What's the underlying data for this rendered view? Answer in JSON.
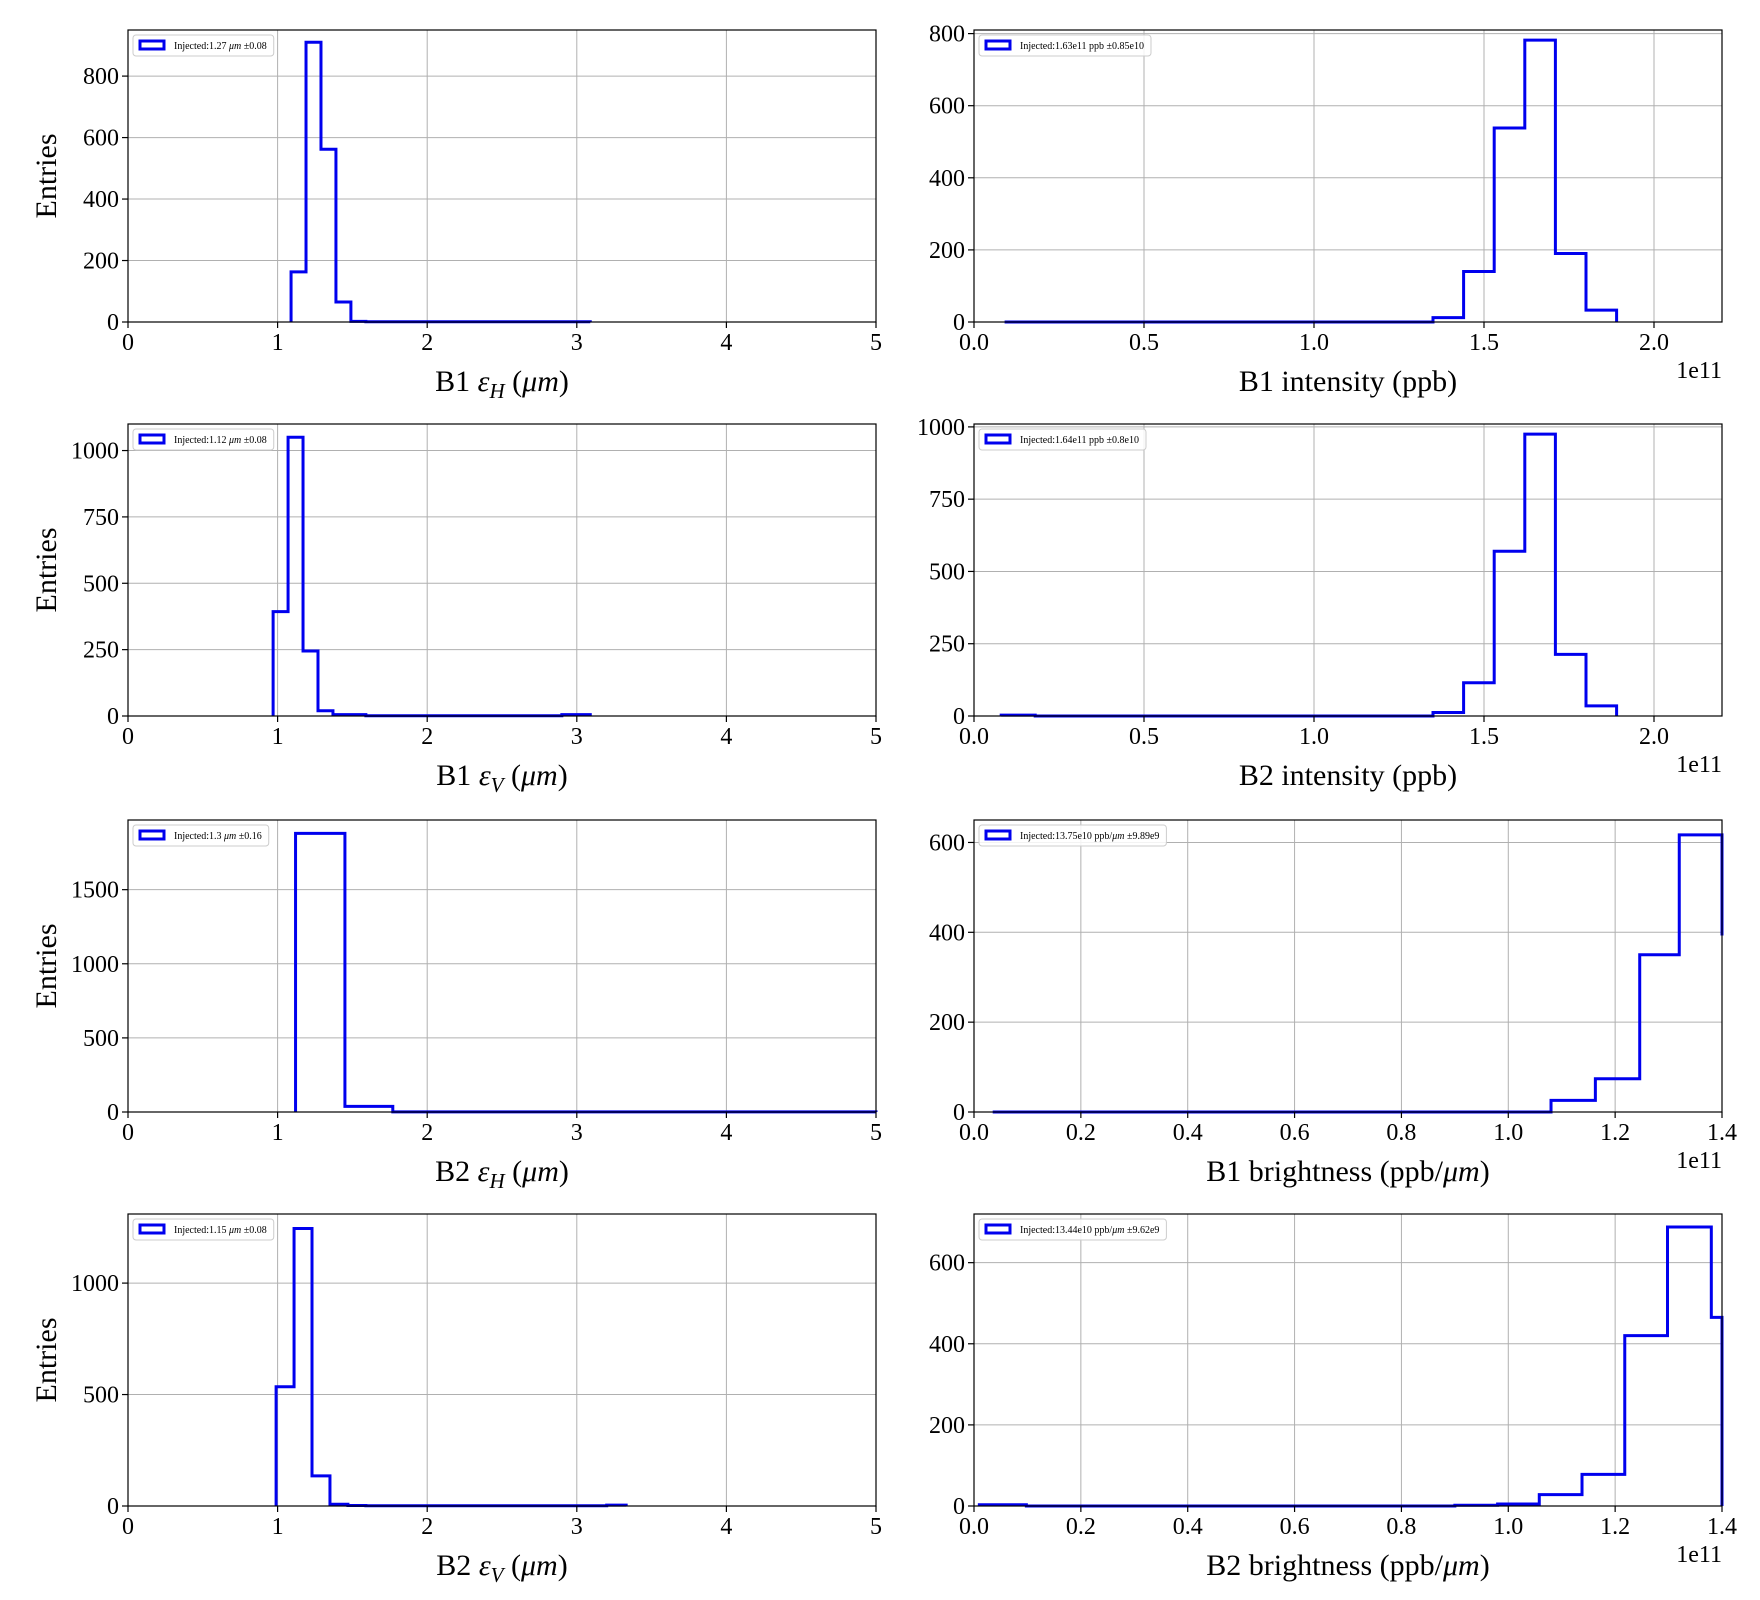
{
  "chart_data": [
    {
      "type": "step-histogram",
      "xlabel": "B1 ε_H (μm)",
      "xlabel_parts": [
        "B1 ",
        "ε",
        "H",
        " (",
        "μm",
        ")"
      ],
      "ylabel": "Entries",
      "xlim": [
        0,
        5
      ],
      "ylim": [
        0,
        950
      ],
      "xticks": [
        0,
        1,
        2,
        3,
        4,
        5
      ],
      "xtick_labels": [
        "0",
        "1",
        "2",
        "3",
        "4",
        "5"
      ],
      "yticks": [
        0,
        200,
        400,
        600,
        800
      ],
      "ytick_labels": [
        "0",
        "200",
        "400",
        "600",
        "800"
      ],
      "legend": "Injected:1.27 μm ±0.08",
      "legend_parts": [
        "Injected:1.27 ",
        "μm",
        " ±0.08"
      ],
      "legend_loc": "upper left",
      "color": "#0000ee",
      "offset_text": "",
      "bin_edges": [
        1.09,
        1.19,
        1.29,
        1.39,
        1.49,
        1.59,
        3.09
      ],
      "values": [
        163,
        910,
        562,
        65,
        2,
        1
      ]
    },
    {
      "type": "step-histogram",
      "xlabel": "B1 intensity (ppb)",
      "xlabel_parts": [
        "B1 intensity (ppb)"
      ],
      "ylabel": "",
      "xlim": [
        0,
        2.2
      ],
      "ylim": [
        0,
        810
      ],
      "xticks": [
        0,
        0.5,
        1.0,
        1.5,
        2.0
      ],
      "xtick_labels": [
        "0.0",
        "0.5",
        "1.0",
        "1.5",
        "2.0"
      ],
      "yticks": [
        0,
        200,
        400,
        600,
        800
      ],
      "ytick_labels": [
        "0",
        "200",
        "400",
        "600",
        "800"
      ],
      "legend": "Injected:1.63e11 ppb ±0.85e10",
      "legend_parts": [
        "Injected:1.63e11 ppb ±0.85e10"
      ],
      "legend_loc": "upper left",
      "color": "#0000ee",
      "offset_text": "1e11",
      "bin_edges": [
        0.09,
        1.35,
        1.44,
        1.53,
        1.62,
        1.71,
        1.8,
        1.89
      ],
      "values": [
        0,
        12,
        140,
        538,
        782,
        190,
        33
      ]
    },
    {
      "type": "step-histogram",
      "xlabel": "B1 ε_V (μm)",
      "xlabel_parts": [
        "B1 ",
        "ε",
        "V",
        " (",
        "μm",
        ")"
      ],
      "ylabel": "Entries",
      "xlim": [
        0,
        5
      ],
      "ylim": [
        0,
        1100
      ],
      "xticks": [
        0,
        1,
        2,
        3,
        4,
        5
      ],
      "xtick_labels": [
        "0",
        "1",
        "2",
        "3",
        "4",
        "5"
      ],
      "yticks": [
        0,
        250,
        500,
        750,
        1000
      ],
      "ytick_labels": [
        "0",
        "250",
        "500",
        "750",
        "1000"
      ],
      "legend": "Injected:1.12 μm ±0.08",
      "legend_parts": [
        "Injected:1.12 ",
        "μm",
        " ±0.08"
      ],
      "legend_loc": "upper left",
      "color": "#0000ee",
      "offset_text": "",
      "bin_edges": [
        0.97,
        1.07,
        1.17,
        1.27,
        1.37,
        1.59,
        2.9,
        3.09
      ],
      "values": [
        393,
        1050,
        245,
        20,
        5,
        1,
        5
      ]
    },
    {
      "type": "step-histogram",
      "xlabel": "B2 intensity (ppb)",
      "xlabel_parts": [
        "B2 intensity (ppb)"
      ],
      "ylabel": "",
      "xlim": [
        0,
        2.2
      ],
      "ylim": [
        0,
        1010
      ],
      "xticks": [
        0,
        0.5,
        1.0,
        1.5,
        2.0
      ],
      "xtick_labels": [
        "0.0",
        "0.5",
        "1.0",
        "1.5",
        "2.0"
      ],
      "yticks": [
        0,
        250,
        500,
        750,
        1000
      ],
      "ytick_labels": [
        "0",
        "250",
        "500",
        "750",
        "1000"
      ],
      "legend": "Injected:1.64e11 ppb ±0.8e10",
      "legend_parts": [
        "Injected:1.64e11 ppb ±0.8e10"
      ],
      "legend_loc": "upper left",
      "color": "#0000ee",
      "offset_text": "1e11",
      "bin_edges": [
        0.08,
        0.18,
        1.35,
        1.44,
        1.53,
        1.62,
        1.71,
        1.8,
        1.89
      ],
      "values": [
        3,
        0,
        12,
        115,
        570,
        975,
        213,
        35
      ]
    },
    {
      "type": "step-histogram",
      "xlabel": "B2 ε_H (μm)",
      "xlabel_parts": [
        "B2 ",
        "ε",
        "H",
        " (",
        "μm",
        ")"
      ],
      "ylabel": "Entries",
      "xlim": [
        0,
        5
      ],
      "ylim": [
        0,
        1970
      ],
      "xticks": [
        0,
        1,
        2,
        3,
        4,
        5
      ],
      "xtick_labels": [
        "0",
        "1",
        "2",
        "3",
        "4",
        "5"
      ],
      "yticks": [
        0,
        500,
        1000,
        1500
      ],
      "ytick_labels": [
        "0",
        "500",
        "1000",
        "1500"
      ],
      "legend": "Injected:1.3 μm ±0.16",
      "legend_parts": [
        "Injected:1.3 ",
        "μm",
        " ±0.16"
      ],
      "legend_loc": "upper left",
      "color": "#0000ee",
      "offset_text": "",
      "bin_edges": [
        1.12,
        1.45,
        1.77,
        5.0
      ],
      "values": [
        1880,
        38,
        1
      ]
    },
    {
      "type": "step-histogram",
      "xlabel": "B1 brightness (ppb/μm)",
      "xlabel_parts": [
        "B1 brightness (ppb/",
        "μm",
        ")"
      ],
      "ylabel": "",
      "xlim": [
        0,
        1.4
      ],
      "ylim": [
        0,
        650
      ],
      "xticks": [
        0,
        0.2,
        0.4,
        0.6,
        0.8,
        1.0,
        1.2,
        1.4
      ],
      "xtick_labels": [
        "0.0",
        "0.2",
        "0.4",
        "0.6",
        "0.8",
        "1.0",
        "1.2",
        "1.4"
      ],
      "yticks": [
        0,
        200,
        400,
        600
      ],
      "ytick_labels": [
        "0",
        "200",
        "400",
        "600"
      ],
      "legend": "Injected:13.75e10 ppb/μm ±9.89e9",
      "legend_parts": [
        "Injected:13.75e10 ppb/",
        "μm",
        " ±9.89e9"
      ],
      "legend_loc": "upper left",
      "color": "#0000ee",
      "offset_text": "1e11",
      "bin_edges": [
        0.035,
        1.08,
        1.163,
        1.246,
        1.32,
        1.4
      ],
      "values": [
        0,
        26,
        74,
        350,
        617
      ],
      "edge_value": 393
    },
    {
      "type": "step-histogram",
      "xlabel": "B2 ε_V (μm)",
      "xlabel_parts": [
        "B2 ",
        "ε",
        "V",
        " (",
        "μm",
        ")"
      ],
      "ylabel": "Entries",
      "xlim": [
        0,
        5
      ],
      "ylim": [
        0,
        1310
      ],
      "xticks": [
        0,
        1,
        2,
        3,
        4,
        5
      ],
      "xtick_labels": [
        "0",
        "1",
        "2",
        "3",
        "4",
        "5"
      ],
      "yticks": [
        0,
        500,
        1000
      ],
      "ytick_labels": [
        "0",
        "500",
        "1000"
      ],
      "legend": "Injected:1.15 μm ±0.08",
      "legend_parts": [
        "Injected:1.15 ",
        "μm",
        " ±0.08"
      ],
      "legend_loc": "upper left",
      "color": "#0000ee",
      "offset_text": "",
      "bin_edges": [
        0.99,
        1.11,
        1.23,
        1.35,
        1.47,
        1.59,
        3.2,
        3.33
      ],
      "values": [
        535,
        1245,
        135,
        8,
        2,
        1,
        4
      ]
    },
    {
      "type": "step-histogram",
      "xlabel": "B2 brightness (ppb/μm)",
      "xlabel_parts": [
        "B2 brightness (ppb/",
        "μm",
        ")"
      ],
      "ylabel": "",
      "xlim": [
        0,
        1.4
      ],
      "ylim": [
        0,
        720
      ],
      "xticks": [
        0,
        0.2,
        0.4,
        0.6,
        0.8,
        1.0,
        1.2,
        1.4
      ],
      "xtick_labels": [
        "0.0",
        "0.2",
        "0.4",
        "0.6",
        "0.8",
        "1.0",
        "1.2",
        "1.4"
      ],
      "yticks": [
        0,
        200,
        400,
        600
      ],
      "ytick_labels": [
        "0",
        "200",
        "400",
        "600"
      ],
      "legend": "Injected:13.44e10 ppb/μm ±9.62e9",
      "legend_parts": [
        "Injected:13.44e10 ppb/",
        "μm",
        " ±9.62e9"
      ],
      "legend_loc": "upper left",
      "color": "#0000ee",
      "offset_text": "1e11",
      "bin_edges": [
        0.01,
        0.098,
        0.9,
        0.98,
        1.058,
        1.138,
        1.218,
        1.298,
        1.38,
        1.4
      ],
      "values": [
        3,
        0,
        2,
        5,
        28,
        78,
        420,
        688,
        465
      ]
    }
  ]
}
